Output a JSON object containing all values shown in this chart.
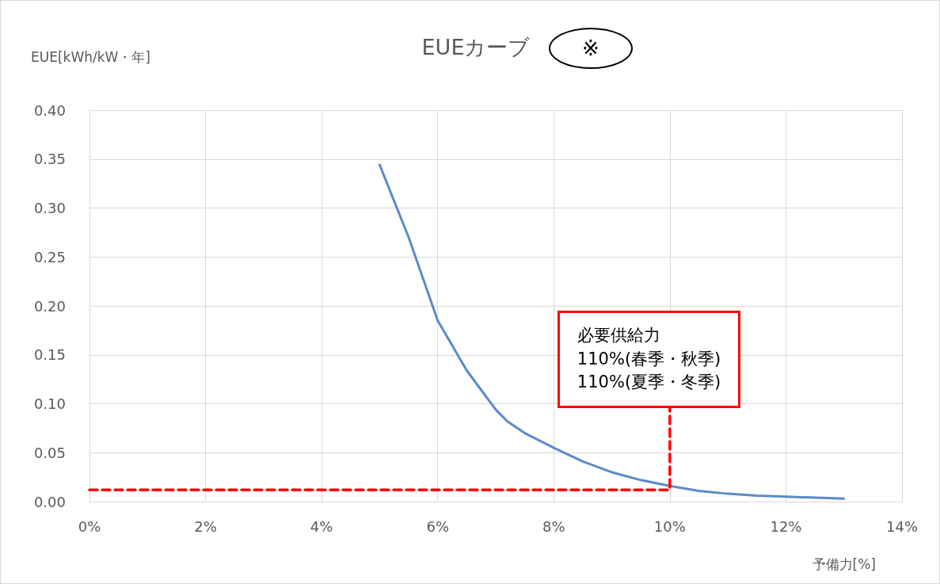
{
  "chart_data": {
    "type": "line",
    "title": "EUEカーブ",
    "ylabel": "EUE[kWh/kW・年]",
    "xlabel": "予備力[%]",
    "annotations": [
      "※",
      {
        "text": "必要供給力\n110%(春季・秋季)\n110%(夏季・冬季)",
        "x": 10,
        "y": 0.096
      }
    ],
    "series": [
      {
        "color": "#5b8bc9",
        "x": [
          5,
          5.5,
          6,
          6.5,
          7,
          7.2,
          7.5,
          8,
          8.5,
          9,
          9.5,
          10,
          10.5,
          11,
          11.5,
          12,
          12.5,
          13
        ],
        "values": [
          0.344,
          0.27,
          0.185,
          0.134,
          0.094,
          0.082,
          0.07,
          0.055,
          0.041,
          0.03,
          0.022,
          0.016,
          0.011,
          0.008,
          0.006,
          0.005,
          0.004,
          0.003
        ]
      },
      {
        "type": "line",
        "color": "#ff0000",
        "line_style": "dashed",
        "x": [
          0,
          10,
          10
        ],
        "values": [
          0.012,
          0.012,
          0.096
        ]
      }
    ],
    "xlim": [
      0,
      14
    ],
    "xticks": [
      {
        "value": 0,
        "label": "0%"
      },
      {
        "value": 2,
        "label": "2%"
      },
      {
        "value": 4,
        "label": "4%"
      },
      {
        "value": 6,
        "label": "6%"
      },
      {
        "value": 8,
        "label": "8%"
      },
      {
        "value": 10,
        "label": "10%"
      },
      {
        "value": 12,
        "label": "12%"
      },
      {
        "value": 14,
        "label": "14%"
      }
    ],
    "ylim": [
      0,
      0.4
    ],
    "yticks": [
      {
        "value": 0,
        "label": "0.00"
      },
      {
        "value": 0.05,
        "label": "0.05"
      },
      {
        "value": 0.1,
        "label": "0.10"
      },
      {
        "value": 0.15,
        "label": "0.15"
      },
      {
        "value": 0.2,
        "label": "0.20"
      },
      {
        "value": 0.25,
        "label": "0.25"
      },
      {
        "value": 0.3,
        "label": "0.30"
      },
      {
        "value": 0.35,
        "label": "0.35"
      },
      {
        "value": 0.4,
        "label": "0.40"
      }
    ],
    "grid": true,
    "marker": "none",
    "line_style": "solid"
  }
}
